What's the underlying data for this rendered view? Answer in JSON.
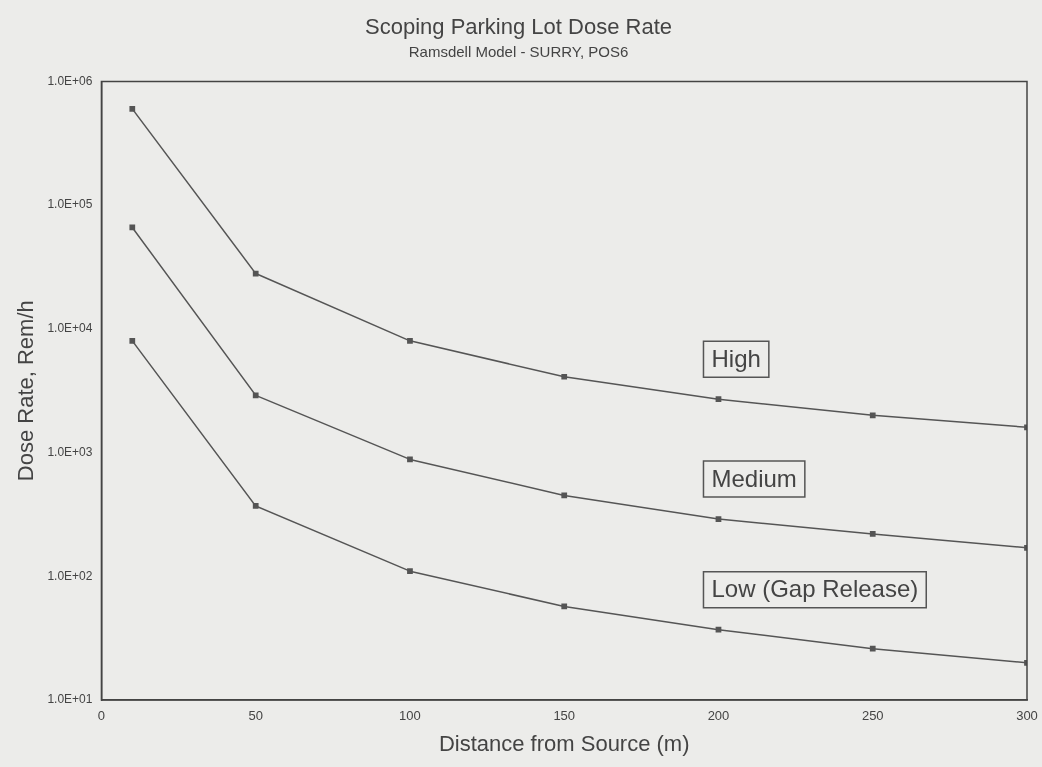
{
  "chart_data": {
    "type": "line",
    "title": "Scoping Parking Lot Dose Rate",
    "subtitle": "Ramsdell Model - SURRY, POS6",
    "xlabel": "Distance from Source (m)",
    "ylabel": "Dose Rate, Rem/h",
    "x": [
      10,
      50,
      100,
      150,
      200,
      250,
      300
    ],
    "series": [
      {
        "name": "High",
        "color": "#555555",
        "values": [
          600000,
          28000,
          8000,
          4100,
          2700,
          2000,
          1600
        ]
      },
      {
        "name": "Medium",
        "color": "#555555",
        "values": [
          66000,
          2900,
          880,
          450,
          290,
          220,
          170
        ]
      },
      {
        "name": "Low (Gap Release)",
        "color": "#555555",
        "values": [
          8000,
          370,
          110,
          57,
          37,
          26,
          20
        ]
      }
    ],
    "log": "y",
    "xlim": [
      0,
      300
    ],
    "xticks": [
      0,
      50,
      100,
      150,
      200,
      250,
      300
    ],
    "ylim": [
      10,
      1000000
    ],
    "yticks": [
      {
        "value": 10,
        "label": "1.0E+01"
      },
      {
        "value": 100,
        "label": "1.0E+02"
      },
      {
        "value": 1000,
        "label": "1.0E+03"
      },
      {
        "value": 10000,
        "label": "1.0E+04"
      },
      {
        "value": 100000,
        "label": "1.0E+05"
      },
      {
        "value": 1000000,
        "label": "1.0E+06"
      }
    ],
    "grid": false,
    "legend": false,
    "marker": "square",
    "line_style": "solid"
  }
}
